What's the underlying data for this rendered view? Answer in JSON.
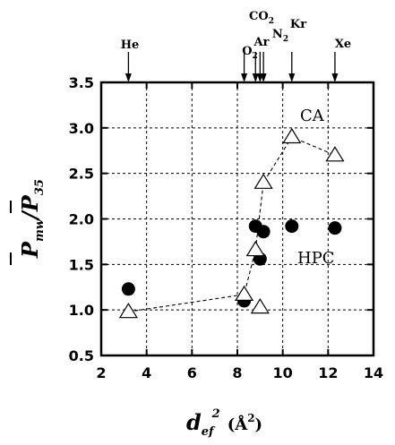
{
  "chart_data": {
    "type": "scatter",
    "xlabel": {
      "main": "d",
      "sub": "ef",
      "sup": "2",
      "unit": "(Å",
      "unit_sup": "2",
      "unit_close": ")"
    },
    "ylabel": {
      "num": "P",
      "num_sub": "mw",
      "slash": "/",
      "den": "P",
      "den_sub": "35"
    },
    "xlim": [
      2,
      14
    ],
    "ylim": [
      0.5,
      3.5
    ],
    "grid": true,
    "x_ticks": [
      {
        "v": 2,
        "label": "2"
      },
      {
        "v": 4,
        "label": "4"
      },
      {
        "v": 6,
        "label": "6"
      },
      {
        "v": 8,
        "label": "8"
      },
      {
        "v": 10,
        "label": "10"
      },
      {
        "v": 12,
        "label": "12"
      },
      {
        "v": 14,
        "label": "14"
      }
    ],
    "y_ticks": [
      {
        "v": 0.5,
        "label": "0.5"
      },
      {
        "v": 1.0,
        "label": "1.0"
      },
      {
        "v": 1.5,
        "label": "1.5"
      },
      {
        "v": 2.0,
        "label": "2.0"
      },
      {
        "v": 2.5,
        "label": "2.5"
      },
      {
        "v": 3.0,
        "label": "3.0"
      },
      {
        "v": 3.5,
        "label": "3.5"
      }
    ],
    "gas_markers": [
      {
        "x": 3.2,
        "label": "He"
      },
      {
        "x": 8.3,
        "label": "O2"
      },
      {
        "x": 8.8,
        "label": "Ar"
      },
      {
        "x": 9.0,
        "label": "CO2"
      },
      {
        "x": 9.15,
        "label": "N2"
      },
      {
        "x": 10.4,
        "label": "Kr"
      },
      {
        "x": 12.3,
        "label": "Xe"
      }
    ],
    "series": [
      {
        "name": "HPC",
        "marker": "filled-circle",
        "points": [
          {
            "x": 3.2,
            "y": 1.23
          },
          {
            "x": 8.3,
            "y": 1.1
          },
          {
            "x": 8.8,
            "y": 1.92
          },
          {
            "x": 9.0,
            "y": 1.56
          },
          {
            "x": 9.15,
            "y": 1.86
          },
          {
            "x": 10.4,
            "y": 1.92
          },
          {
            "x": 12.3,
            "y": 1.9
          }
        ]
      },
      {
        "name": "CA",
        "marker": "open-triangle",
        "connected": true,
        "points": [
          {
            "x": 3.2,
            "y": 0.98
          },
          {
            "x": 8.3,
            "y": 1.17
          },
          {
            "x": 8.8,
            "y": 1.66
          },
          {
            "x": 9.15,
            "y": 2.4
          },
          {
            "x": 10.4,
            "y": 2.9
          },
          {
            "x": 12.3,
            "y": 2.7
          }
        ],
        "extra_points": [
          {
            "x": 9.0,
            "y": 1.03
          }
        ]
      }
    ]
  }
}
